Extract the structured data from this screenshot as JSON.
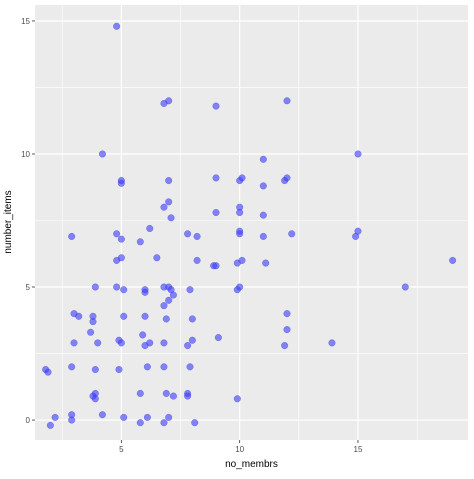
{
  "chart_data": {
    "type": "scatter",
    "xlabel": "no_membrs",
    "ylabel": "number_items",
    "xlim": [
      1.35,
      19.65
    ],
    "ylim": [
      -0.75,
      15.6
    ],
    "xticks": [
      5,
      10,
      15
    ],
    "yticks": [
      0,
      5,
      10,
      15
    ],
    "x_minor_ticks": [
      2.5,
      7.5,
      12.5,
      17.5
    ],
    "y_minor_ticks": [
      2.5,
      7.5,
      12.5
    ],
    "grid": true,
    "point_color": "#3F3FFF",
    "panel_background": "#EBEBEB",
    "grid_color": "#FFFFFF",
    "points": [
      [
        4.8,
        14.8
      ],
      [
        6.8,
        11.9
      ],
      [
        7.0,
        12.0
      ],
      [
        9.0,
        11.8
      ],
      [
        12.0,
        12.0
      ],
      [
        4.2,
        10.0
      ],
      [
        11.0,
        9.8
      ],
      [
        15.0,
        10.0
      ],
      [
        5.0,
        9.0
      ],
      [
        5.0,
        8.9
      ],
      [
        7.0,
        9.0
      ],
      [
        9.0,
        9.1
      ],
      [
        10.0,
        9.0
      ],
      [
        10.1,
        9.1
      ],
      [
        11.0,
        8.8
      ],
      [
        11.9,
        9.0
      ],
      [
        12.0,
        9.1
      ],
      [
        7.0,
        8.2
      ],
      [
        6.8,
        8.0
      ],
      [
        10.0,
        8.0
      ],
      [
        10.0,
        7.8
      ],
      [
        11.0,
        7.7
      ],
      [
        9.0,
        7.8
      ],
      [
        7.1,
        7.6
      ],
      [
        6.2,
        7.2
      ],
      [
        7.8,
        7.0
      ],
      [
        8.2,
        6.9
      ],
      [
        10.0,
        7.1
      ],
      [
        10.0,
        7.0
      ],
      [
        11.0,
        6.9
      ],
      [
        12.2,
        7.0
      ],
      [
        14.9,
        6.9
      ],
      [
        15.0,
        7.1
      ],
      [
        2.9,
        6.9
      ],
      [
        4.8,
        7.0
      ],
      [
        5.0,
        6.8
      ],
      [
        5.8,
        6.7
      ],
      [
        6.5,
        6.1
      ],
      [
        4.8,
        6.0
      ],
      [
        5.0,
        6.1
      ],
      [
        8.2,
        6.0
      ],
      [
        8.9,
        5.8
      ],
      [
        9.0,
        5.8
      ],
      [
        9.9,
        5.9
      ],
      [
        10.1,
        6.0
      ],
      [
        11.1,
        5.9
      ],
      [
        19.0,
        6.0
      ],
      [
        17.0,
        5.0
      ],
      [
        6.8,
        5.0
      ],
      [
        7.0,
        5.0
      ],
      [
        3.9,
        5.0
      ],
      [
        4.8,
        5.0
      ],
      [
        5.1,
        4.9
      ],
      [
        6.0,
        4.9
      ],
      [
        6.0,
        4.8
      ],
      [
        7.1,
        4.9
      ],
      [
        7.9,
        4.9
      ],
      [
        9.9,
        4.9
      ],
      [
        10.0,
        5.0
      ],
      [
        7.2,
        4.7
      ],
      [
        7.0,
        4.5
      ],
      [
        6.8,
        4.3
      ],
      [
        3.0,
        4.0
      ],
      [
        3.2,
        3.9
      ],
      [
        3.8,
        3.9
      ],
      [
        3.8,
        3.7
      ],
      [
        5.1,
        3.9
      ],
      [
        6.0,
        3.9
      ],
      [
        6.9,
        3.8
      ],
      [
        8.0,
        3.8
      ],
      [
        12.0,
        4.0
      ],
      [
        12.0,
        3.4
      ],
      [
        3.7,
        3.3
      ],
      [
        5.9,
        3.2
      ],
      [
        8.0,
        3.0
      ],
      [
        6.2,
        2.9
      ],
      [
        9.1,
        3.1
      ],
      [
        3.0,
        2.9
      ],
      [
        4.0,
        2.9
      ],
      [
        4.9,
        3.0
      ],
      [
        5.0,
        2.9
      ],
      [
        6.0,
        2.8
      ],
      [
        6.8,
        2.9
      ],
      [
        7.8,
        2.8
      ],
      [
        11.9,
        2.8
      ],
      [
        13.9,
        2.9
      ],
      [
        2.9,
        2.0
      ],
      [
        3.9,
        1.9
      ],
      [
        4.9,
        1.9
      ],
      [
        6.1,
        2.0
      ],
      [
        6.8,
        2.0
      ],
      [
        7.9,
        2.0
      ],
      [
        1.8,
        1.9
      ],
      [
        1.9,
        1.8
      ],
      [
        3.9,
        1.0
      ],
      [
        3.8,
        0.9
      ],
      [
        3.9,
        0.8
      ],
      [
        5.8,
        1.0
      ],
      [
        6.9,
        1.0
      ],
      [
        7.2,
        0.9
      ],
      [
        7.8,
        1.0
      ],
      [
        7.8,
        0.9
      ],
      [
        9.9,
        0.8
      ],
      [
        4.2,
        0.2
      ],
      [
        5.1,
        0.1
      ],
      [
        6.1,
        0.1
      ],
      [
        7.0,
        0.1
      ],
      [
        2.2,
        0.1
      ],
      [
        2.9,
        0.2
      ],
      [
        2.0,
        -0.2
      ],
      [
        2.9,
        0.0
      ],
      [
        5.8,
        -0.1
      ],
      [
        6.8,
        -0.1
      ],
      [
        8.1,
        -0.1
      ]
    ]
  }
}
